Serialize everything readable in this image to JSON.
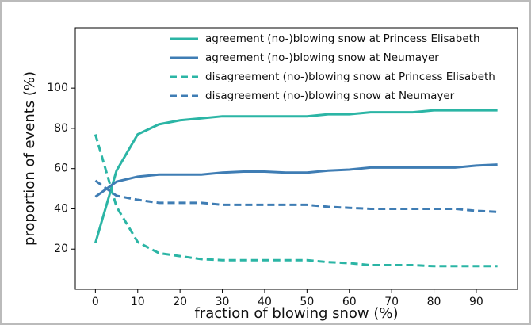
{
  "chart_data": {
    "type": "line",
    "x_label": "fraction of blowing snow (%)",
    "y_label": "proportion of events (%)",
    "x": [
      0,
      5,
      10,
      15,
      20,
      25,
      30,
      35,
      40,
      45,
      50,
      55,
      60,
      65,
      70,
      75,
      80,
      85,
      90,
      95
    ],
    "series": [
      {
        "name": "agreement (no-)blowing snow at Princess Elisabeth",
        "color": "#2bb5a5",
        "linestyle": "solid",
        "values": [
          23,
          59,
          77,
          82,
          84,
          85,
          86,
          86,
          86,
          86,
          86,
          87,
          87,
          88,
          88,
          88,
          89,
          89,
          89,
          89
        ]
      },
      {
        "name": "agreement (no-)blowing snow at Neumayer",
        "color": "#3f7db4",
        "linestyle": "solid",
        "values": [
          46,
          53.5,
          56,
          57,
          57,
          57,
          58,
          58.5,
          58.5,
          58,
          58,
          59,
          59.5,
          60.5,
          60.5,
          60.5,
          60.5,
          60.5,
          61.5,
          62
        ]
      },
      {
        "name": "disagreement (no-)blowing snow at Princess Elisabeth",
        "color": "#2bb5a5",
        "linestyle": "dashed",
        "values": [
          77,
          41,
          23.5,
          18,
          16.5,
          15,
          14.5,
          14.5,
          14.5,
          14.5,
          14.5,
          13.5,
          13,
          12,
          12,
          12,
          11.5,
          11.5,
          11.5,
          11.5
        ]
      },
      {
        "name": "disagreement (no-)blowing snow at Neumayer",
        "color": "#3f7db4",
        "linestyle": "dashed",
        "values": [
          54,
          46.5,
          44.5,
          43,
          43,
          43,
          42,
          42,
          42,
          42,
          42,
          41,
          40.5,
          40,
          40,
          40,
          40,
          40,
          39,
          38.5
        ]
      }
    ],
    "xlim": [
      -4.75,
      99.75
    ],
    "xticks": [
      0,
      10,
      20,
      30,
      40,
      50,
      60,
      70,
      80,
      90
    ],
    "ylim": [
      0,
      130
    ],
    "yticks": [
      20,
      40,
      60,
      80,
      100
    ],
    "legend": "upper right"
  }
}
